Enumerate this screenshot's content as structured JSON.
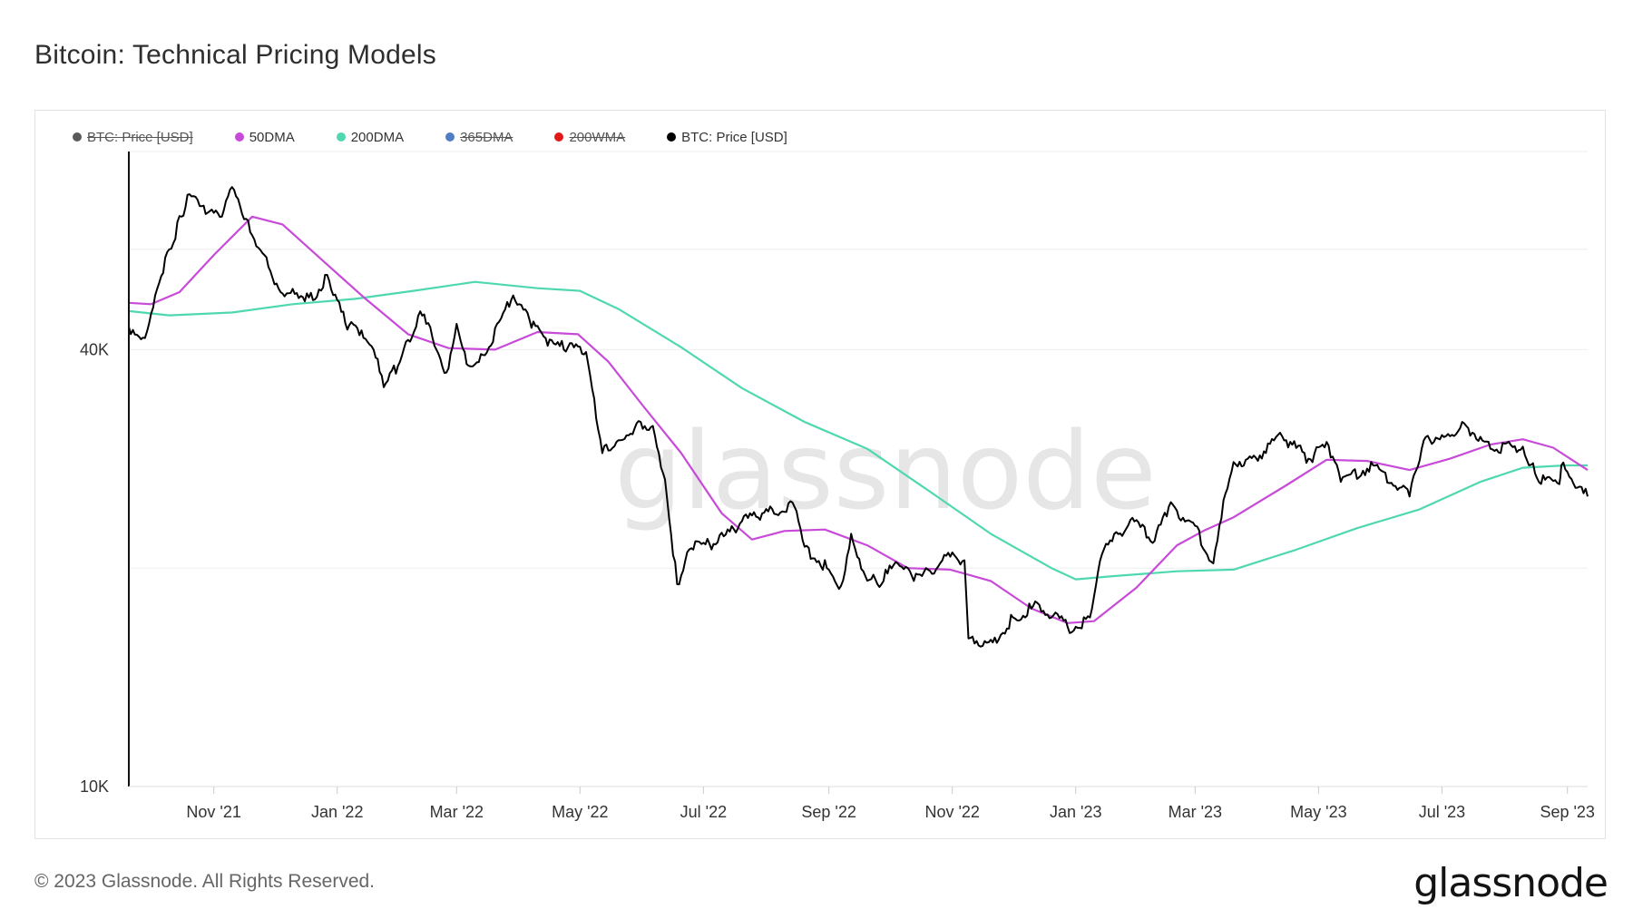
{
  "page": {
    "title": "Bitcoin: Technical Pricing Models",
    "copyright": "© 2023 Glassnode. All Rights Reserved.",
    "brand": "glassnode",
    "watermark": "glassnode"
  },
  "legend": [
    {
      "label": "BTC: Price [USD]",
      "color": "#5a5a5a",
      "enabled": false
    },
    {
      "label": "50DMA",
      "color": "#c84ad8",
      "enabled": true
    },
    {
      "label": "200DMA",
      "color": "#4fd8b0",
      "enabled": true
    },
    {
      "label": "365DMA",
      "color": "#4f7ec2",
      "enabled": false
    },
    {
      "label": "200WMA",
      "color": "#e01818",
      "enabled": false
    },
    {
      "label": "BTC: Price [USD]",
      "color": "#000000",
      "enabled": true
    }
  ],
  "chart_data": {
    "type": "line",
    "title": "Bitcoin: Technical Pricing Models",
    "y_scale": "log",
    "ylim": [
      10000,
      75000
    ],
    "y_ticks": [
      {
        "value": 40000,
        "label": "40K"
      },
      {
        "value": 10000,
        "label": "10K"
      }
    ],
    "x_range": [
      "2021-09-20",
      "2023-09-11"
    ],
    "x_ticks": [
      {
        "date": "2021-11-01",
        "label": "Nov '21"
      },
      {
        "date": "2022-01-01",
        "label": "Jan '22"
      },
      {
        "date": "2022-03-01",
        "label": "Mar '22"
      },
      {
        "date": "2022-05-01",
        "label": "May '22"
      },
      {
        "date": "2022-07-01",
        "label": "Jul '22"
      },
      {
        "date": "2022-09-01",
        "label": "Sep '22"
      },
      {
        "date": "2022-11-01",
        "label": "Nov '22"
      },
      {
        "date": "2023-01-01",
        "label": "Jan '23"
      },
      {
        "date": "2023-03-01",
        "label": "Mar '23"
      },
      {
        "date": "2023-05-01",
        "label": "May '23"
      },
      {
        "date": "2023-07-01",
        "label": "Jul '23"
      },
      {
        "date": "2023-09-01",
        "label": "Sep '23"
      }
    ],
    "grid": true,
    "legend_position": "top-left",
    "series": [
      {
        "name": "BTC: Price [USD]",
        "color": "#000000",
        "points": [
          [
            "2021-09-20",
            43000
          ],
          [
            "2021-09-28",
            41500
          ],
          [
            "2021-10-03",
            47500
          ],
          [
            "2021-10-10",
            55000
          ],
          [
            "2021-10-16",
            61000
          ],
          [
            "2021-10-20",
            65500
          ],
          [
            "2021-10-28",
            61500
          ],
          [
            "2021-11-05",
            61000
          ],
          [
            "2021-11-10",
            67000
          ],
          [
            "2021-11-16",
            60500
          ],
          [
            "2021-11-26",
            54000
          ],
          [
            "2021-12-04",
            48000
          ],
          [
            "2021-12-10",
            48500
          ],
          [
            "2021-12-20",
            46800
          ],
          [
            "2021-12-27",
            50700
          ],
          [
            "2022-01-05",
            43500
          ],
          [
            "2022-01-11",
            42800
          ],
          [
            "2022-01-20",
            39000
          ],
          [
            "2022-01-24",
            35500
          ],
          [
            "2022-02-01",
            38500
          ],
          [
            "2022-02-10",
            44500
          ],
          [
            "2022-02-15",
            43500
          ],
          [
            "2022-02-24",
            37200
          ],
          [
            "2022-03-01",
            43400
          ],
          [
            "2022-03-07",
            38000
          ],
          [
            "2022-03-15",
            39300
          ],
          [
            "2022-03-29",
            47500
          ],
          [
            "2022-04-06",
            44000
          ],
          [
            "2022-04-15",
            40500
          ],
          [
            "2022-04-25",
            40300
          ],
          [
            "2022-05-04",
            39700
          ],
          [
            "2022-05-10",
            31000
          ],
          [
            "2022-05-12",
            28800
          ],
          [
            "2022-05-20",
            30000
          ],
          [
            "2022-05-31",
            31800
          ],
          [
            "2022-06-06",
            31400
          ],
          [
            "2022-06-12",
            26500
          ],
          [
            "2022-06-18",
            19000
          ],
          [
            "2022-06-25",
            21300
          ],
          [
            "2022-07-08",
            21700
          ],
          [
            "2022-07-20",
            23200
          ],
          [
            "2022-07-30",
            23800
          ],
          [
            "2022-08-15",
            24300
          ],
          [
            "2022-08-20",
            21400
          ],
          [
            "2022-08-31",
            20000
          ],
          [
            "2022-09-07",
            18900
          ],
          [
            "2022-09-12",
            22300
          ],
          [
            "2022-09-18",
            19800
          ],
          [
            "2022-09-25",
            19000
          ],
          [
            "2022-10-05",
            20300
          ],
          [
            "2022-10-13",
            19200
          ],
          [
            "2022-10-25",
            20100
          ],
          [
            "2022-10-29",
            20800
          ],
          [
            "2022-11-07",
            20500
          ],
          [
            "2022-11-09",
            16000
          ],
          [
            "2022-11-21",
            15800
          ],
          [
            "2022-12-01",
            17100
          ],
          [
            "2022-12-14",
            17800
          ],
          [
            "2022-12-28",
            16600
          ],
          [
            "2023-01-01",
            16600
          ],
          [
            "2023-01-08",
            17100
          ],
          [
            "2023-01-14",
            20900
          ],
          [
            "2023-01-28",
            23300
          ],
          [
            "2023-02-09",
            21800
          ],
          [
            "2023-02-16",
            24300
          ],
          [
            "2023-02-28",
            23100
          ],
          [
            "2023-03-10",
            20300
          ],
          [
            "2023-03-15",
            24800
          ],
          [
            "2023-03-20",
            28000
          ],
          [
            "2023-03-31",
            28400
          ],
          [
            "2023-04-13",
            30400
          ],
          [
            "2023-04-26",
            28300
          ],
          [
            "2023-05-06",
            29500
          ],
          [
            "2023-05-12",
            26300
          ],
          [
            "2023-05-28",
            27700
          ],
          [
            "2023-06-10",
            25800
          ],
          [
            "2023-06-15",
            25100
          ],
          [
            "2023-06-22",
            30000
          ],
          [
            "2023-07-01",
            30500
          ],
          [
            "2023-07-13",
            31400
          ],
          [
            "2023-07-25",
            29200
          ],
          [
            "2023-08-10",
            29400
          ],
          [
            "2023-08-17",
            26600
          ],
          [
            "2023-08-28",
            26100
          ],
          [
            "2023-08-29",
            27700
          ],
          [
            "2023-09-05",
            25800
          ],
          [
            "2023-09-11",
            25100
          ]
        ]
      },
      {
        "name": "50DMA",
        "color": "#c84ad8",
        "points": [
          [
            "2021-09-20",
            46400
          ],
          [
            "2021-10-01",
            46200
          ],
          [
            "2021-10-15",
            48000
          ],
          [
            "2021-11-01",
            54000
          ],
          [
            "2021-11-20",
            61000
          ],
          [
            "2021-12-05",
            59500
          ],
          [
            "2021-12-25",
            53000
          ],
          [
            "2022-01-15",
            47000
          ],
          [
            "2022-02-05",
            42000
          ],
          [
            "2022-02-25",
            40200
          ],
          [
            "2022-03-20",
            40000
          ],
          [
            "2022-04-10",
            42300
          ],
          [
            "2022-04-30",
            42000
          ],
          [
            "2022-05-15",
            38500
          ],
          [
            "2022-06-01",
            33500
          ],
          [
            "2022-06-20",
            28800
          ],
          [
            "2022-07-10",
            23800
          ],
          [
            "2022-07-25",
            21900
          ],
          [
            "2022-08-10",
            22500
          ],
          [
            "2022-08-30",
            22600
          ],
          [
            "2022-09-20",
            21500
          ],
          [
            "2022-10-10",
            20000
          ],
          [
            "2022-10-31",
            19900
          ],
          [
            "2022-11-20",
            19200
          ],
          [
            "2022-12-10",
            17600
          ],
          [
            "2022-12-28",
            16800
          ],
          [
            "2023-01-10",
            16900
          ],
          [
            "2023-01-31",
            18800
          ],
          [
            "2023-02-20",
            21500
          ],
          [
            "2023-03-05",
            22500
          ],
          [
            "2023-03-20",
            23500
          ],
          [
            "2023-04-15",
            26000
          ],
          [
            "2023-05-05",
            28200
          ],
          [
            "2023-05-25",
            28100
          ],
          [
            "2023-06-15",
            27300
          ],
          [
            "2023-07-05",
            28300
          ],
          [
            "2023-07-25",
            29600
          ],
          [
            "2023-08-10",
            30100
          ],
          [
            "2023-08-25",
            29300
          ],
          [
            "2023-09-11",
            27300
          ]
        ]
      },
      {
        "name": "200DMA",
        "color": "#4fd8b0",
        "points": [
          [
            "2021-09-20",
            45200
          ],
          [
            "2021-10-10",
            44600
          ],
          [
            "2021-11-10",
            45000
          ],
          [
            "2021-12-10",
            46200
          ],
          [
            "2022-01-10",
            47000
          ],
          [
            "2022-02-10",
            48300
          ],
          [
            "2022-03-10",
            49600
          ],
          [
            "2022-04-10",
            48600
          ],
          [
            "2022-05-01",
            48200
          ],
          [
            "2022-05-20",
            45500
          ],
          [
            "2022-06-20",
            40300
          ],
          [
            "2022-07-20",
            35400
          ],
          [
            "2022-08-20",
            31800
          ],
          [
            "2022-09-20",
            29200
          ],
          [
            "2022-10-20",
            25600
          ],
          [
            "2022-11-20",
            22300
          ],
          [
            "2022-12-20",
            20000
          ],
          [
            "2023-01-01",
            19300
          ],
          [
            "2023-01-20",
            19500
          ],
          [
            "2023-02-20",
            19800
          ],
          [
            "2023-03-20",
            19900
          ],
          [
            "2023-04-20",
            21200
          ],
          [
            "2023-05-20",
            22700
          ],
          [
            "2023-06-20",
            24100
          ],
          [
            "2023-07-20",
            26300
          ],
          [
            "2023-08-10",
            27500
          ],
          [
            "2023-08-31",
            27700
          ],
          [
            "2023-09-11",
            27700
          ]
        ]
      }
    ]
  }
}
